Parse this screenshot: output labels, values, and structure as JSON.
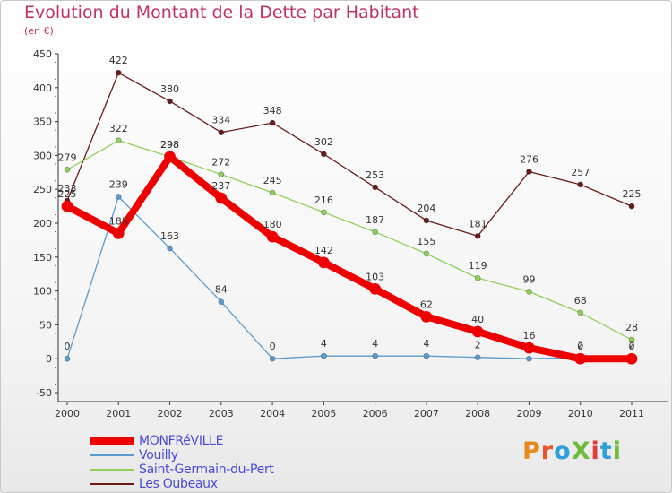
{
  "title": "Evolution du Montant de la Dette par Habitant",
  "unit": "(en €)",
  "logo": {
    "text": "ProXiti",
    "colors": [
      "#e68a1e",
      "#e8532a",
      "#2f9fd8",
      "#6dbb3a",
      "#e33a3a",
      "#2f9fd8",
      "#6dbb3a"
    ]
  },
  "chart_data": {
    "type": "line",
    "x": [
      "2000",
      "2001",
      "2002",
      "2003",
      "2004",
      "2005",
      "2006",
      "2007",
      "2008",
      "2009",
      "2010",
      "2011"
    ],
    "ylim": [
      -50,
      450
    ],
    "yticks": [
      "450",
      "400",
      "350",
      "300",
      "250",
      "200",
      "150",
      "100",
      "50",
      "0",
      "-50"
    ],
    "grid": false,
    "legend_position": "bottom-left",
    "series": [
      {
        "name": "Les Oubeaux",
        "color": "#6b1a1a",
        "values": [
          233,
          422,
          380,
          334,
          348,
          302,
          253,
          204,
          181,
          276,
          257,
          225
        ]
      },
      {
        "name": "Saint-Germain-du-Pert",
        "color": "#8fd05a",
        "values": [
          279,
          322,
          298,
          272,
          245,
          216,
          187,
          155,
          119,
          99,
          68,
          28
        ]
      },
      {
        "name": "Vouilly",
        "color": "#5b9bd0",
        "values": [
          0,
          239,
          163,
          84,
          0,
          4,
          4,
          4,
          2,
          0,
          2,
          2
        ]
      },
      {
        "name": "MONFRéVILLE",
        "color": "#ee0000",
        "values": [
          225,
          185,
          298,
          237,
          180,
          142,
          103,
          62,
          40,
          16,
          0,
          0
        ]
      }
    ]
  }
}
